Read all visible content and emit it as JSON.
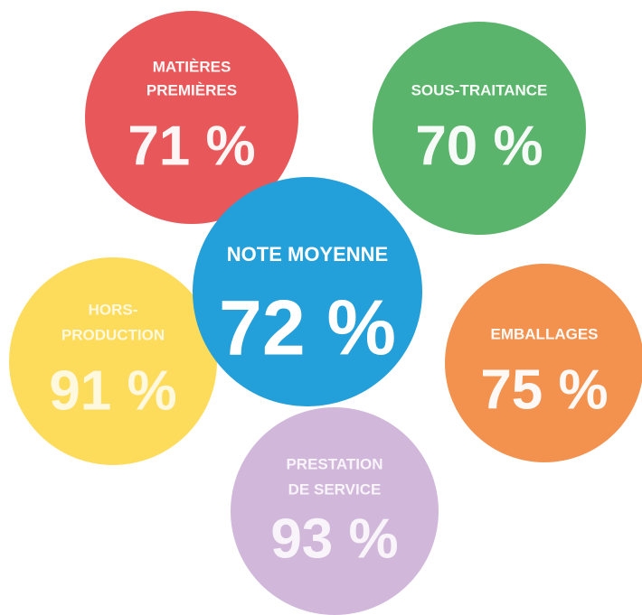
{
  "center": {
    "label": [
      "NOTE MOYENNE"
    ],
    "value": "72 %",
    "color": "#239fd9"
  },
  "nodes": [
    {
      "label": [
        "MATIÈRES",
        "PREMIÈRES"
      ],
      "value": "71 %",
      "color": "#e8585a"
    },
    {
      "label": [
        "SOUS-TRAITANCE"
      ],
      "value": "70 %",
      "color": "#5bb46c"
    },
    {
      "label": [
        "HORS-",
        "PRODUCTION"
      ],
      "value": "91 %",
      "color": "#fddc5c"
    },
    {
      "label": [
        "EMBALLAGES"
      ],
      "value": "75 %",
      "color": "#f2924e"
    },
    {
      "label": [
        "PRESTATION",
        "DE SERVICE"
      ],
      "value": "93 %",
      "color": "#d1b8db"
    }
  ]
}
